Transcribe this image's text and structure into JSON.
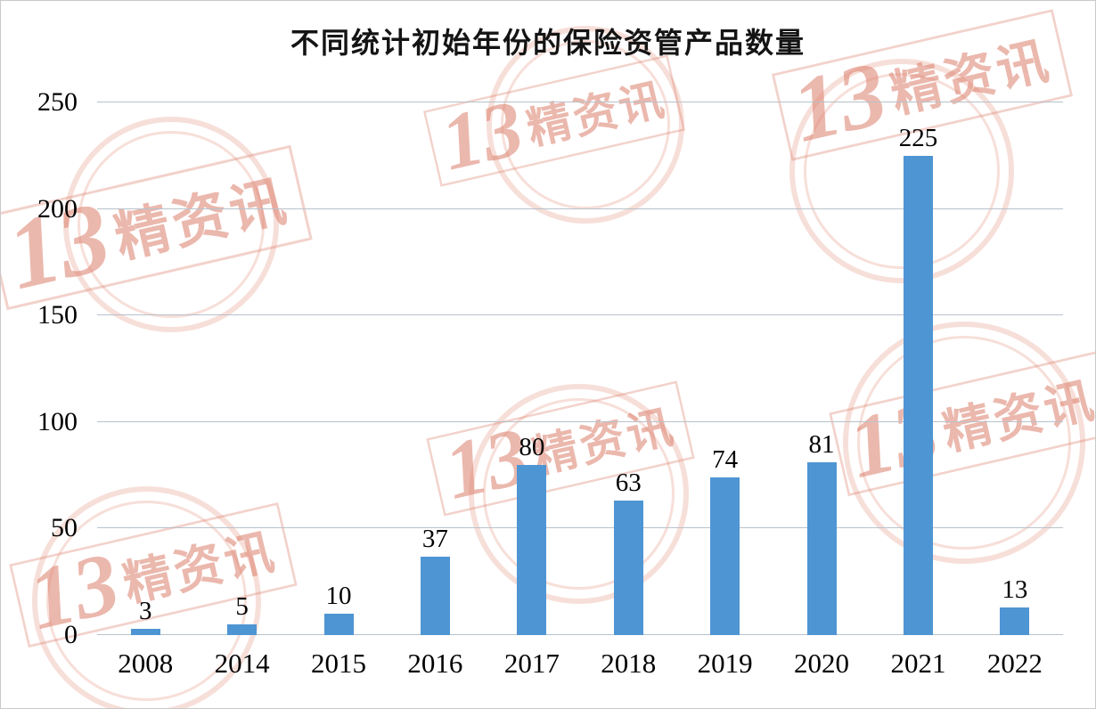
{
  "chart_data": {
    "type": "bar",
    "title": "不同统计初始年份的保险资管产品数量",
    "categories": [
      "2008",
      "2014",
      "2015",
      "2016",
      "2017",
      "2018",
      "2019",
      "2020",
      "2021",
      "2022"
    ],
    "values": [
      3,
      5,
      10,
      37,
      80,
      63,
      74,
      81,
      225,
      13
    ],
    "xlabel": "",
    "ylabel": "",
    "ylim": [
      0,
      250
    ],
    "yticks": [
      0,
      50,
      100,
      150,
      200,
      250
    ],
    "grid": "on",
    "legend": "none",
    "bar_color": "#4e95d3",
    "gridline_color": "#b7c1cb"
  },
  "watermark": {
    "text": "13精资讯"
  }
}
